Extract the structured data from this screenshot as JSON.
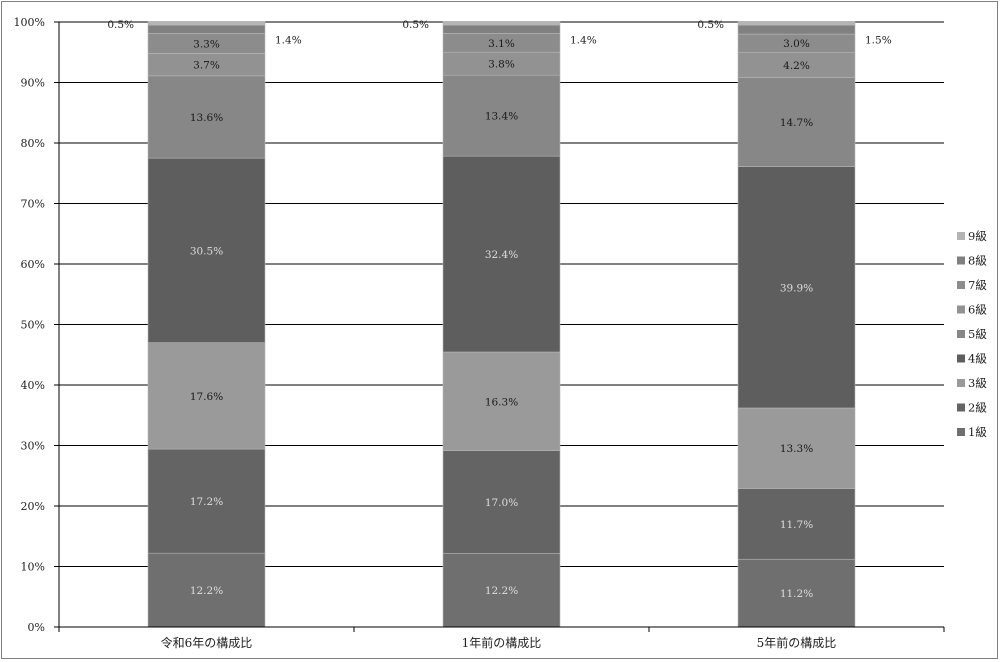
{
  "chart_data": {
    "type": "bar",
    "stacked": true,
    "percent_stacked": true,
    "categories": [
      "令和6年の構成比",
      "1年前の構成比",
      "5年前の構成比"
    ],
    "series": [
      {
        "name": "1級",
        "values": [
          12.2,
          12.2,
          11.2
        ],
        "labels": [
          "12.2%",
          "12.2%",
          "11.2%"
        ],
        "color": "#6f6f6f"
      },
      {
        "name": "2級",
        "values": [
          17.2,
          17.0,
          11.7
        ],
        "labels": [
          "17.2%",
          "17.0%",
          "11.7%"
        ],
        "color": "#646464"
      },
      {
        "name": "3級",
        "values": [
          17.6,
          16.3,
          13.3
        ],
        "labels": [
          "17.6%",
          "16.3%",
          "13.3%"
        ],
        "color": "#9a9a9a"
      },
      {
        "name": "4級",
        "values": [
          30.5,
          32.4,
          39.9
        ],
        "labels": [
          "30.5%",
          "32.4%",
          "39.9%"
        ],
        "color": "#5e5e5e"
      },
      {
        "name": "5級",
        "values": [
          13.6,
          13.4,
          14.7
        ],
        "labels": [
          "13.6%",
          "13.4%",
          "14.7%"
        ],
        "color": "#878787"
      },
      {
        "name": "6級",
        "values": [
          3.7,
          3.8,
          4.2
        ],
        "labels": [
          "3.7%",
          "3.8%",
          "4.2%"
        ],
        "color": "#929292"
      },
      {
        "name": "7級",
        "values": [
          3.3,
          3.1,
          3.0
        ],
        "labels": [
          "3.3%",
          "3.1%",
          "3.0%"
        ],
        "color": "#8c8c8c"
      },
      {
        "name": "8級",
        "values": [
          1.4,
          1.4,
          1.5
        ],
        "labels": [
          "1.4%",
          "1.4%",
          "1.5%"
        ],
        "color": "#808080"
      },
      {
        "name": "9級",
        "values": [
          0.5,
          0.5,
          0.5
        ],
        "labels": [
          "0.5%",
          "0.5%",
          "0.5%"
        ],
        "color": "#b4b4b4"
      }
    ],
    "ylim": [
      0,
      100
    ],
    "yticks": [
      "0%",
      "10%",
      "20%",
      "30%",
      "40%",
      "50%",
      "60%",
      "70%",
      "80%",
      "90%",
      "100%"
    ],
    "grid": true,
    "legend_position": "right",
    "legend_order": [
      "9級",
      "8級",
      "7級",
      "6級",
      "5級",
      "4級",
      "3級",
      "2級",
      "1級"
    ],
    "title": "",
    "xlabel": "",
    "ylabel": ""
  }
}
